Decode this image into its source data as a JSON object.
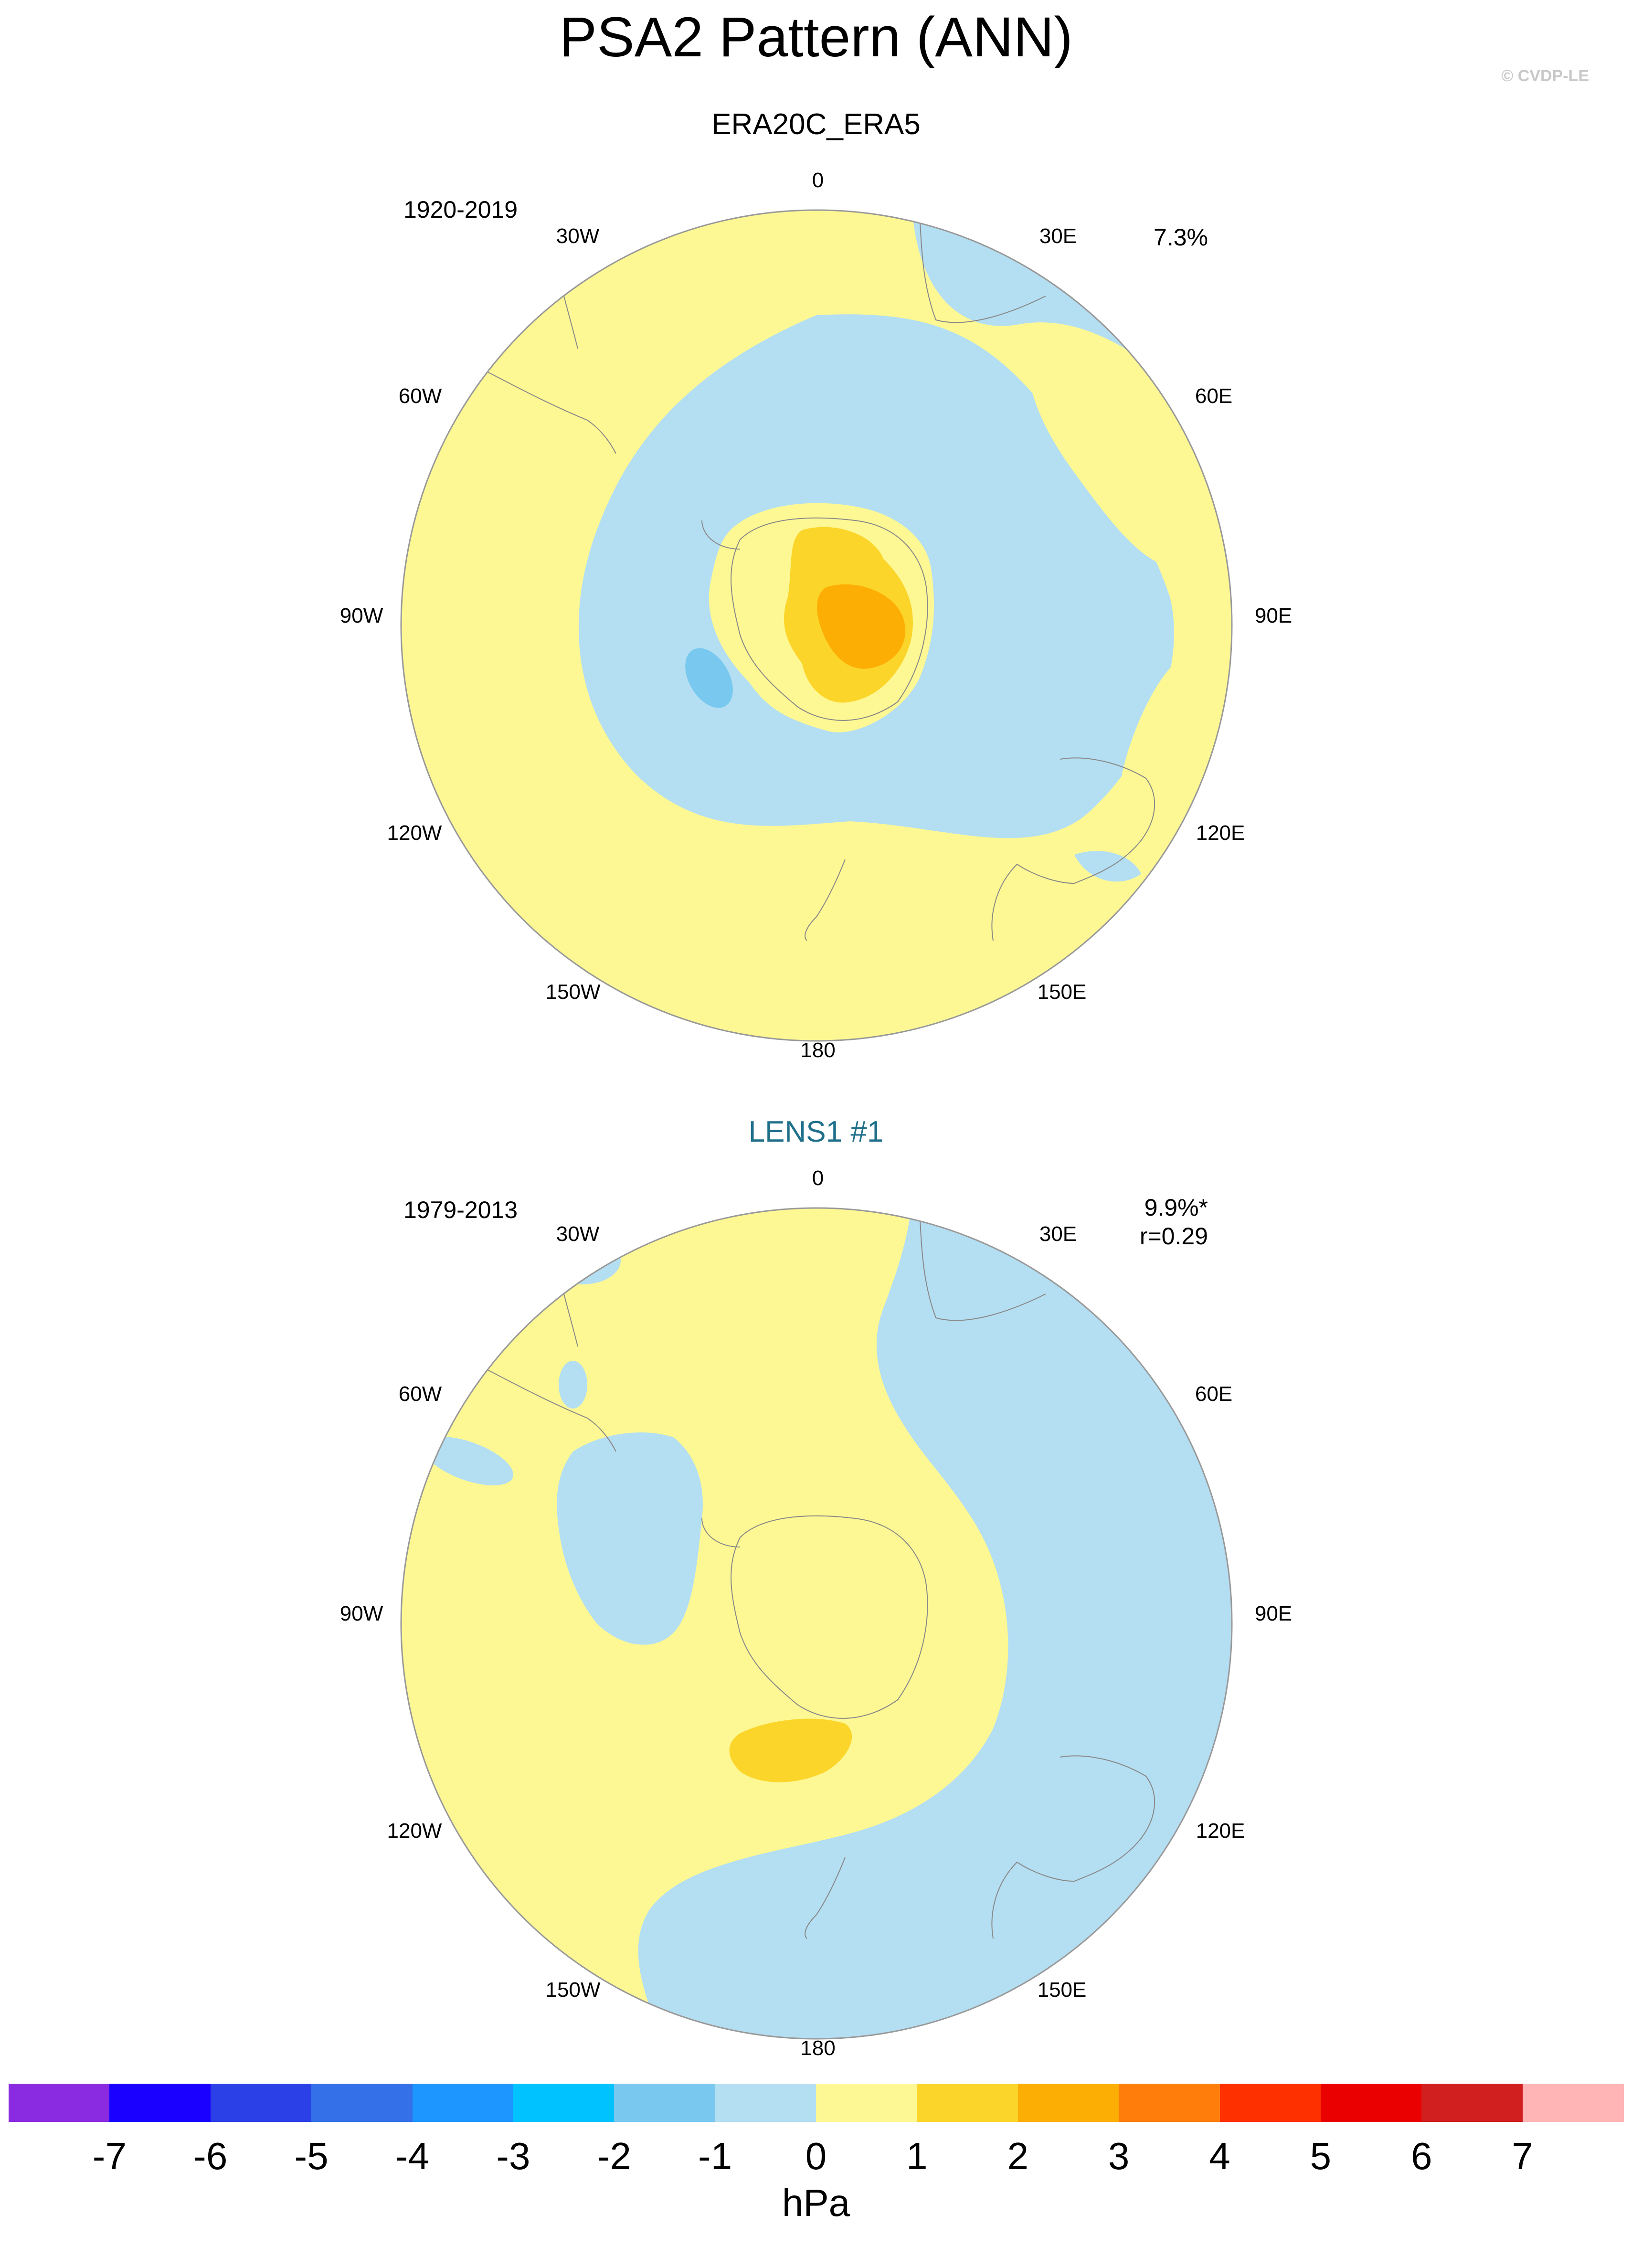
{
  "title": "PSA2 Pattern (ANN)",
  "copyright": "© CVDP-LE",
  "panels": [
    {
      "title": "ERA20C_ERA5",
      "title_color": "#000000",
      "period": "1920-2019",
      "pct": "7.3%",
      "corr": ""
    },
    {
      "title": "LENS1 #1",
      "title_color": "#1f6f8b",
      "period": "1979-2013",
      "pct": "9.9%*",
      "corr": "r=0.29"
    }
  ],
  "lon_labels": {
    "l0": "0",
    "l30e": "30E",
    "l60e": "60E",
    "l90e": "90E",
    "l120e": "120E",
    "l150e": "150E",
    "l180": "180",
    "l150w": "150W",
    "l120w": "120W",
    "l90w": "90W",
    "l60w": "60W",
    "l30w": "30W"
  },
  "colorbar": {
    "unit": "hPa",
    "colors": [
      "#8a2be2",
      "#1a00ff",
      "#2c40e8",
      "#3470e8",
      "#1e96ff",
      "#00c2ff",
      "#78c8f0",
      "#b4def2",
      "#fdf894",
      "#fcd52a",
      "#fdae05",
      "#ff7e0b",
      "#ff3000",
      "#ea0000",
      "#d11e1e",
      "#ffb5b5"
    ],
    "labels": [
      "-7",
      "-6",
      "-5",
      "-4",
      "-3",
      "-2",
      "-1",
      "0",
      "1",
      "2",
      "3",
      "4",
      "5",
      "6",
      "7"
    ]
  }
}
